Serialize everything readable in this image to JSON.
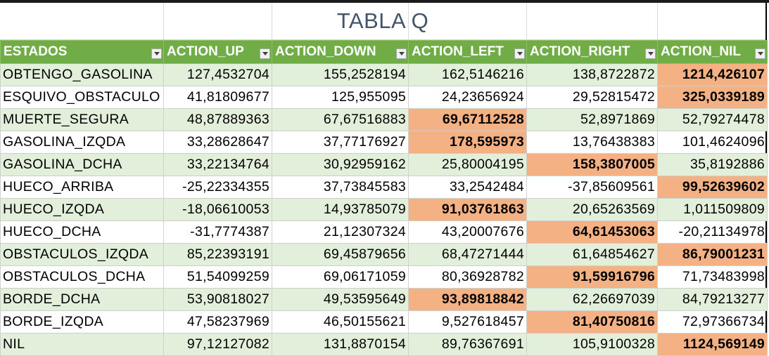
{
  "title": "TABLA Q",
  "headers": [
    "ESTADOS",
    "ACTION_UP",
    "ACTION_DOWN",
    "ACTION_LEFT",
    "ACTION_RIGHT",
    "ACTION_NIL"
  ],
  "colors": {
    "header": "#70ad47",
    "band": "#e2efda",
    "highlight": "#f4b183",
    "title": "#44546a"
  },
  "rows": [
    {
      "estado": "OBTENGO_GASOLINA",
      "values": [
        "127,4532704",
        "155,2528194",
        "162,5146216",
        "138,8722872",
        "1214,426107"
      ],
      "max_col": 4
    },
    {
      "estado": "ESQUIVO_OBSTACULO",
      "values": [
        "41,81809677",
        "125,955095",
        "24,23656924",
        "29,52815472",
        "325,0339189"
      ],
      "max_col": 4
    },
    {
      "estado": "MUERTE_SEGURA",
      "values": [
        "48,87889363",
        "67,67516883",
        "69,67112528",
        "52,8971869",
        "52,79274478"
      ],
      "max_col": 2
    },
    {
      "estado": "GASOLINA_IZQDA",
      "values": [
        "33,28628647",
        "37,77176927",
        "178,595973",
        "13,76438383",
        "101,4624096"
      ],
      "max_col": 2
    },
    {
      "estado": "GASOLINA_DCHA",
      "values": [
        "33,22134764",
        "30,92959162",
        "25,80004195",
        "158,3807005",
        "35,8192886"
      ],
      "max_col": 3
    },
    {
      "estado": "HUECO_ARRIBA",
      "values": [
        "-25,22334355",
        "37,73845583",
        "33,2542484",
        "-37,85609561",
        "99,52639602"
      ],
      "max_col": 4
    },
    {
      "estado": "HUECO_IZQDA",
      "values": [
        "-18,06610053",
        "14,93785079",
        "91,03761863",
        "20,65263569",
        "1,011509809"
      ],
      "max_col": 2
    },
    {
      "estado": "HUECO_DCHA",
      "values": [
        "-31,7774387",
        "21,12307324",
        "43,20007676",
        "64,61453063",
        "-20,21134978"
      ],
      "max_col": 3
    },
    {
      "estado": "OBSTACULOS_IZQDA",
      "values": [
        "85,22393191",
        "69,45879656",
        "68,47271444",
        "61,64854627",
        "86,79001231"
      ],
      "max_col": 4
    },
    {
      "estado": "OBSTACULOS_DCHA",
      "values": [
        "51,54099259",
        "69,06171059",
        "80,36928782",
        "91,59916796",
        "71,73483998"
      ],
      "max_col": 3
    },
    {
      "estado": "BORDE_DCHA",
      "values": [
        "53,90818027",
        "49,53595649",
        "93,89818842",
        "62,26697039",
        "84,79213277"
      ],
      "max_col": 2
    },
    {
      "estado": "BORDE_IZQDA",
      "values": [
        "47,58237969",
        "46,50155621",
        "9,527618457",
        "81,40750816",
        "72,97366734"
      ],
      "max_col": 3
    },
    {
      "estado": "NIL",
      "values": [
        "97,12127082",
        "131,8870154",
        "89,76367691",
        "105,9100328",
        "1124,569149"
      ],
      "max_col": 4
    }
  ]
}
